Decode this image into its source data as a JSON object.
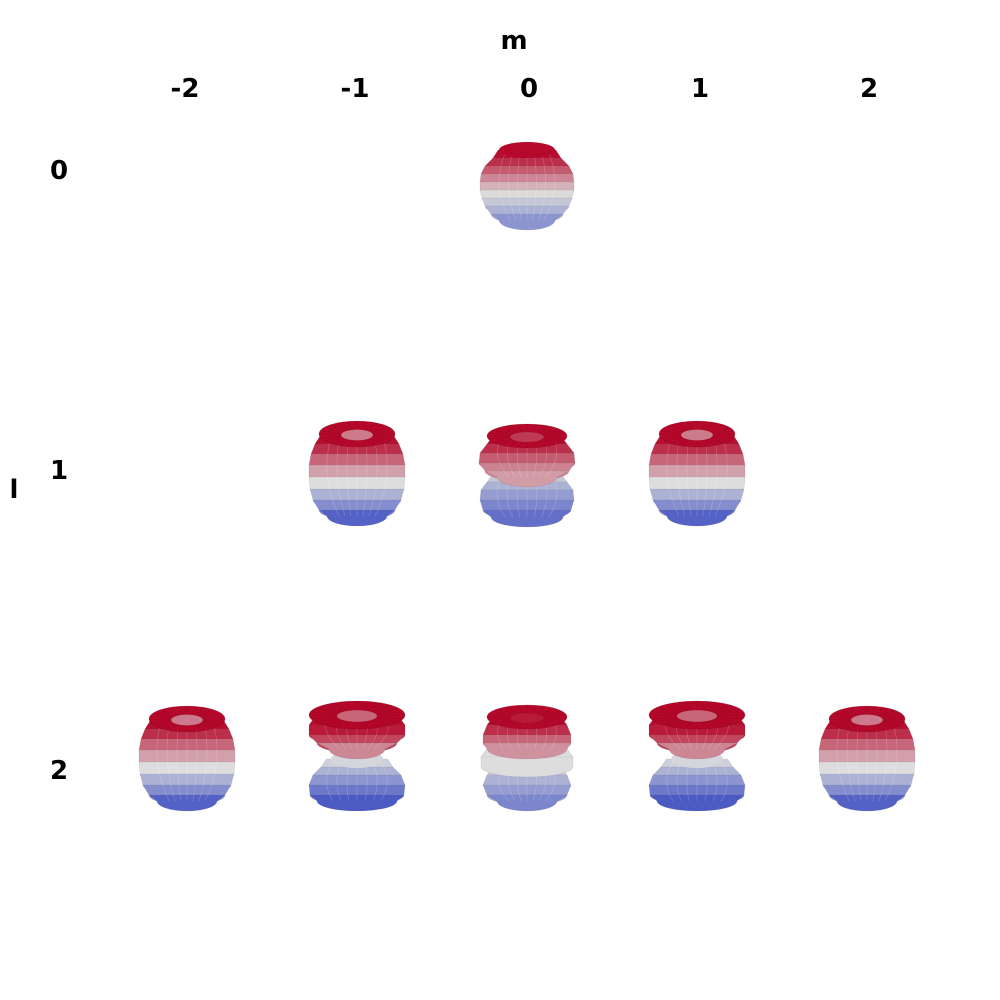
{
  "axis": {
    "m_title": "m",
    "l_title": "l",
    "m_values": [
      "-2",
      "-1",
      "0",
      "1",
      "2"
    ],
    "l_values": [
      "0",
      "1",
      "2"
    ]
  },
  "colormap": {
    "name": "coolwarm",
    "positive": "#b40426",
    "mid": "#dddddd",
    "negative": "#3b4cc0"
  },
  "harmonics": [
    {
      "l": 0,
      "m": 0,
      "shape": "sphere"
    },
    {
      "l": 1,
      "m": -1,
      "shape": "banded-sphere"
    },
    {
      "l": 1,
      "m": 0,
      "shape": "two-lobe"
    },
    {
      "l": 1,
      "m": 1,
      "shape": "banded-sphere"
    },
    {
      "l": 2,
      "m": -2,
      "shape": "banded-sphere"
    },
    {
      "l": 2,
      "m": -1,
      "shape": "two-lobe-wide"
    },
    {
      "l": 2,
      "m": 0,
      "shape": "three-band"
    },
    {
      "l": 2,
      "m": 1,
      "shape": "two-lobe-wide"
    },
    {
      "l": 2,
      "m": 2,
      "shape": "banded-sphere"
    }
  ]
}
